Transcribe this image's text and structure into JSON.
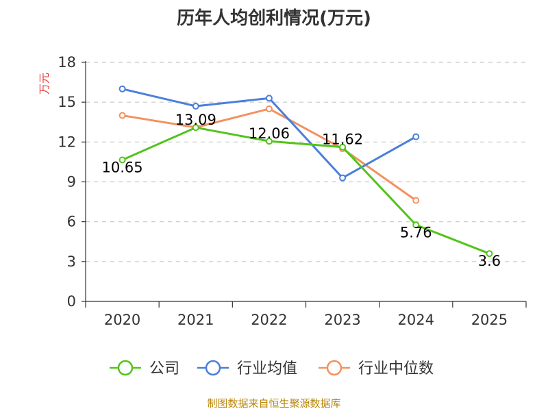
{
  "chart_data": {
    "type": "line",
    "title": "历年人均创利情况(万元)",
    "xlabel": "",
    "ylabel": "万元",
    "ylim": [
      0,
      18
    ],
    "yticks": [
      0,
      3,
      6,
      9,
      12,
      15,
      18
    ],
    "categories": [
      "2020",
      "2021",
      "2022",
      "2023",
      "2024",
      "2025"
    ],
    "grid": true,
    "legend_position": "bottom",
    "series": [
      {
        "name": "公司",
        "color": "#52c41a",
        "values": [
          10.65,
          13.09,
          12.06,
          11.62,
          5.76,
          3.6
        ],
        "labels": [
          "10.65",
          "13.09",
          "12.06",
          "11.62",
          "5.76",
          "3.6"
        ]
      },
      {
        "name": "行业均值",
        "color": "#4a7fdb",
        "values": [
          16.0,
          14.7,
          15.3,
          9.3,
          12.4,
          null
        ]
      },
      {
        "name": "行业中位数",
        "color": "#f4915e",
        "values": [
          14.0,
          13.1,
          14.5,
          11.5,
          7.6,
          null
        ]
      }
    ]
  },
  "footer": {
    "source": "制图数据来自恒生聚源数据库"
  }
}
